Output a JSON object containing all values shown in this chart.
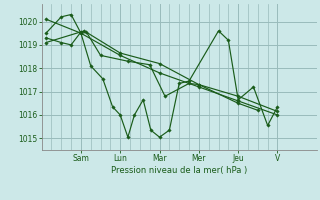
{
  "background_color": "#cce8e8",
  "grid_color": "#99bbbb",
  "line_color": "#1a5c1a",
  "marker_color": "#1a5c1a",
  "xlabel": "Pression niveau de la mer( hPa )",
  "ylim": [
    1014.5,
    1020.75
  ],
  "yticks": [
    1015,
    1016,
    1017,
    1018,
    1019,
    1020
  ],
  "day_labels": [
    "Sam",
    "Lun",
    "Mar",
    "Mer",
    "Jeu",
    "V"
  ],
  "day_positions": [
    36,
    72,
    108,
    144,
    180,
    216
  ],
  "xlim": [
    0,
    252
  ],
  "series": [
    {
      "x": [
        4,
        18,
        27,
        36,
        45,
        56,
        65,
        72,
        79,
        85,
        93,
        100,
        108,
        117,
        126,
        135,
        162,
        171,
        180,
        194,
        207,
        216
      ],
      "y": [
        1019.5,
        1020.2,
        1020.3,
        1019.5,
        1018.1,
        1017.55,
        1016.35,
        1016.0,
        1015.05,
        1016.0,
        1016.65,
        1015.35,
        1015.05,
        1015.35,
        1017.35,
        1017.45,
        1019.6,
        1019.2,
        1016.65,
        1017.2,
        1015.55,
        1016.35
      ]
    },
    {
      "x": [
        4,
        18,
        27,
        36,
        41,
        54,
        79,
        99,
        113,
        135,
        144,
        180,
        198
      ],
      "y": [
        1019.3,
        1019.1,
        1019.0,
        1019.55,
        1019.55,
        1018.55,
        1018.3,
        1018.15,
        1016.8,
        1017.35,
        1017.3,
        1016.5,
        1016.2
      ]
    },
    {
      "x": [
        4,
        39,
        72,
        108,
        144,
        180,
        216
      ],
      "y": [
        1019.1,
        1019.6,
        1018.65,
        1018.2,
        1017.3,
        1016.8,
        1016.15
      ]
    },
    {
      "x": [
        4,
        36,
        72,
        108,
        144,
        180,
        216
      ],
      "y": [
        1020.1,
        1019.5,
        1018.55,
        1017.8,
        1017.2,
        1016.6,
        1016.0
      ]
    }
  ],
  "minor_x_lines": [
    9,
    18,
    27,
    45,
    54,
    63,
    81,
    90,
    99,
    117,
    126,
    135,
    153,
    162,
    171,
    189,
    198,
    207
  ]
}
